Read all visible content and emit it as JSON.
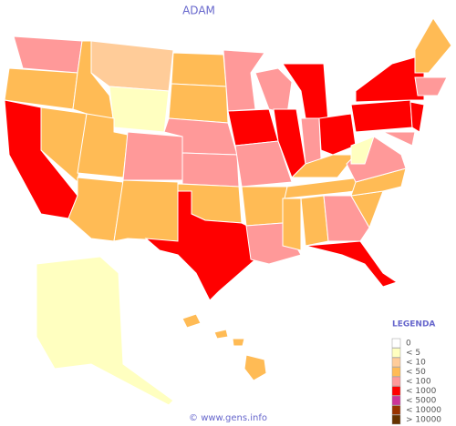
{
  "title": "ADAM",
  "legend": {
    "title": "LEGENDA",
    "items": [
      {
        "label": "0",
        "color": "#ffffff"
      },
      {
        "label": "< 5",
        "color": "#ffffc0"
      },
      {
        "label": "< 10",
        "color": "#ffcc99"
      },
      {
        "label": "< 50",
        "color": "#ffbb55"
      },
      {
        "label": "< 100",
        "color": "#ff9999"
      },
      {
        "label": "< 1000",
        "color": "#ff0000"
      },
      {
        "label": "< 5000",
        "color": "#cc3399"
      },
      {
        "label": "< 10000",
        "color": "#993300"
      },
      {
        "label": "> 10000",
        "color": "#663300"
      }
    ]
  },
  "footer": "© www.gens.info"
}
